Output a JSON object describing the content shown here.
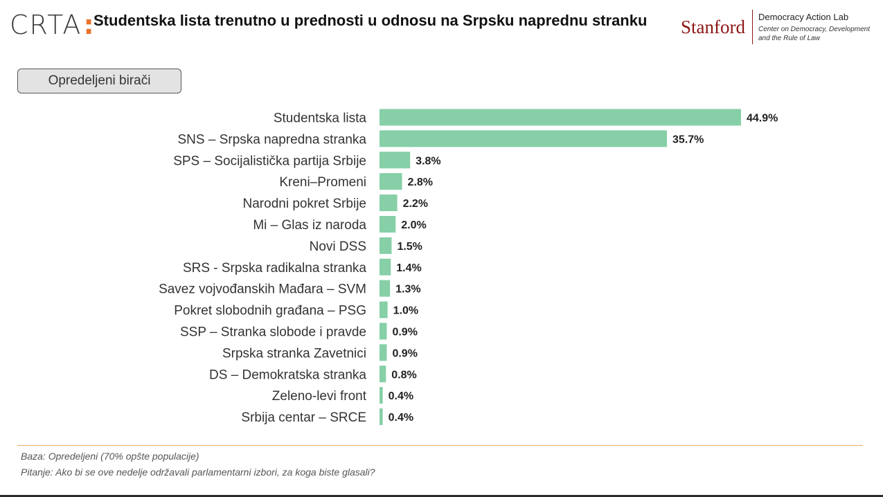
{
  "header": {
    "logo_text": "CRTA",
    "logo_dots": ":",
    "title": "Studentska lista trenutno u prednosti u odnosu na Srpsku naprednu stranku",
    "partner_logo": {
      "wordmark": "Stanford",
      "lab": "Democracy Action Lab",
      "subtitle_line1": "Center on Democracy, Development",
      "subtitle_line2": "and the Rule of Law"
    }
  },
  "segment_button": {
    "label": "Opredeljeni birači"
  },
  "chart_data": {
    "type": "bar",
    "orientation": "horizontal",
    "categories": [
      "Studentska lista",
      "SNS – Srpska napredna stranka",
      "SPS – Socijalistička partija Srbije",
      "Kreni–Promeni",
      "Narodni pokret Srbije",
      "Mi – Glas iz naroda",
      "Novi DSS",
      "SRS - Srpska radikalna stranka",
      "Savez vojvođanskih Mađara – SVM",
      "Pokret slobodnih građana – PSG",
      "SSP – Stranka slobode i pravde",
      "Srpska stranka Zavetnici",
      "DS – Demokratska stranka",
      "Zeleno-levi front",
      "Srbija centar – SRCE"
    ],
    "values": [
      44.9,
      35.7,
      3.8,
      2.8,
      2.2,
      2.0,
      1.5,
      1.4,
      1.3,
      1.0,
      0.9,
      0.9,
      0.8,
      0.4,
      0.4
    ],
    "value_labels": [
      "44.9%",
      "35.7%",
      "3.8%",
      "2.8%",
      "2.2%",
      "2.0%",
      "1.5%",
      "1.4%",
      "1.3%",
      "1.0%",
      "0.9%",
      "0.9%",
      "0.8%",
      "0.4%",
      "0.4%"
    ],
    "unit": "%",
    "bar_color": "#86cfa7",
    "grid": false,
    "legend": "none"
  },
  "footer": {
    "base": "Baza: Opredeljeni (70% opšte populacije)",
    "question": "Pitanje: Ako bi se ove nedelje održavali parlamentarni izbori, za koga biste glasali?"
  },
  "colors": {
    "accent": "#e8732a",
    "footer_rule": "#e8a765",
    "stanford_red": "#8c1515"
  }
}
